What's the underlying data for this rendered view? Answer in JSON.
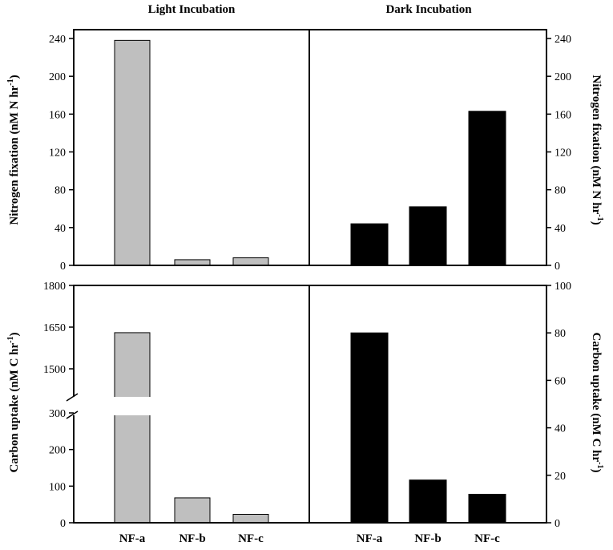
{
  "chart_data": [
    {
      "type": "bar",
      "title": "Light Incubation",
      "panel": "top-left",
      "ylabel": "Nitrogen fixation (nM N hr",
      "ylabel_superscript": "-1",
      "ylabel_suffix": ")",
      "ylim": [
        0,
        250
      ],
      "yticks": [
        0,
        40,
        80,
        120,
        160,
        200,
        240
      ],
      "categories": [
        "NF-a",
        "NF-b",
        "NF-c"
      ],
      "values": [
        238,
        6,
        8
      ],
      "bar_color": "#bfbfbf"
    },
    {
      "type": "bar",
      "title": "Dark Incubation",
      "panel": "top-right",
      "ylabel": "Nitrogen fixation (nM N hr",
      "ylabel_superscript": "-1",
      "ylabel_suffix": ")",
      "ylim": [
        0,
        250
      ],
      "yticks": [
        0,
        40,
        80,
        120,
        160,
        200,
        240
      ],
      "categories": [
        "NF-a",
        "NF-b",
        "NF-c"
      ],
      "values": [
        44,
        62,
        163
      ],
      "bar_color": "#000000"
    },
    {
      "type": "bar",
      "panel": "bottom-left",
      "ylabel": "Carbon uptake (nM C hr",
      "ylabel_superscript": "-1",
      "ylabel_suffix": ")",
      "broken_axis": true,
      "ylim_lower": [
        0,
        330
      ],
      "ylim_upper": [
        1500,
        1800
      ],
      "yticks_lower": [
        0,
        100,
        200,
        300
      ],
      "yticks_upper": [
        1500,
        1650,
        1800
      ],
      "categories": [
        "NF-a",
        "NF-b",
        "NF-c"
      ],
      "values": [
        1630,
        68,
        23
      ],
      "bar_color": "#bfbfbf"
    },
    {
      "type": "bar",
      "panel": "bottom-right",
      "ylabel": "Carbon uptake (nM C hr",
      "ylabel_superscript": "-1",
      "ylabel_suffix": ")",
      "ylim": [
        0,
        100
      ],
      "yticks": [
        0,
        20,
        40,
        60,
        80,
        100
      ],
      "categories": [
        "NF-a",
        "NF-b",
        "NF-c"
      ],
      "values": [
        80,
        18,
        12
      ],
      "bar_color": "#000000"
    }
  ]
}
